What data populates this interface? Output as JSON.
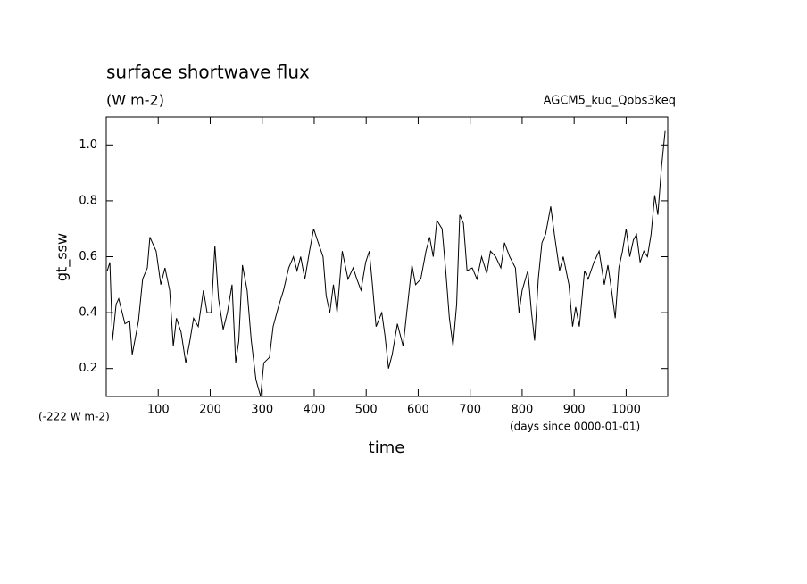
{
  "chart_data": {
    "type": "line",
    "title": "surface shortwave flux",
    "subtitle": "(W m-2)",
    "annotation": "AGCM5_kuo_Qobs3keq",
    "ylabel": "gt_ssw",
    "xlabel": "time",
    "offset_label": "(-222 W m-2)",
    "xunit_label": "(days since 0000-01-01)",
    "xlim": [
      0,
      1080
    ],
    "ylim": [
      0.1,
      1.1
    ],
    "xticks": [
      100,
      200,
      300,
      400,
      500,
      600,
      700,
      800,
      900,
      1000
    ],
    "yticks": [
      0.2,
      0.4,
      0.6,
      0.8,
      {
        "value": 1,
        "label": "1.0"
      }
    ],
    "x": [
      2,
      7,
      12,
      19,
      24,
      36,
      45,
      50,
      62,
      70,
      79,
      84,
      96,
      105,
      113,
      122,
      129,
      135,
      144,
      153,
      161,
      168,
      177,
      187,
      194,
      202,
      209,
      216,
      225,
      233,
      242,
      249,
      255,
      262,
      271,
      279,
      288,
      297,
      303,
      314,
      321,
      331,
      341,
      351,
      360,
      367,
      374,
      382,
      391,
      399,
      406,
      417,
      423,
      430,
      437,
      444,
      454,
      465,
      475,
      482,
      490,
      499,
      506,
      512,
      519,
      530,
      536,
      543,
      550,
      560,
      571,
      578,
      588,
      595,
      605,
      615,
      622,
      629,
      636,
      646,
      653,
      660,
      667,
      674,
      680,
      687,
      694,
      704,
      713,
      722,
      732,
      739,
      749,
      759,
      766,
      776,
      787,
      794,
      800,
      811,
      818,
      824,
      831,
      838,
      845,
      855,
      862,
      872,
      879,
      890,
      897,
      903,
      910,
      920,
      927,
      938,
      948,
      958,
      965,
      972,
      979,
      986,
      993,
      1000,
      1007,
      1014,
      1020,
      1027,
      1034,
      1041,
      1048,
      1055,
      1061,
      1068,
      1075
    ],
    "series": [
      {
        "name": "gt_ssw",
        "color": "#000000",
        "values": [
          0.55,
          0.58,
          0.3,
          0.43,
          0.45,
          0.36,
          0.37,
          0.25,
          0.37,
          0.52,
          0.56,
          0.67,
          0.62,
          0.5,
          0.56,
          0.48,
          0.28,
          0.38,
          0.33,
          0.22,
          0.3,
          0.38,
          0.35,
          0.48,
          0.4,
          0.4,
          0.64,
          0.45,
          0.34,
          0.4,
          0.5,
          0.22,
          0.3,
          0.57,
          0.48,
          0.3,
          0.16,
          0.1,
          0.22,
          0.24,
          0.35,
          0.42,
          0.48,
          0.56,
          0.6,
          0.55,
          0.6,
          0.52,
          0.62,
          0.7,
          0.66,
          0.6,
          0.46,
          0.4,
          0.5,
          0.4,
          0.62,
          0.52,
          0.56,
          0.52,
          0.48,
          0.58,
          0.62,
          0.5,
          0.35,
          0.4,
          0.32,
          0.2,
          0.25,
          0.36,
          0.28,
          0.4,
          0.57,
          0.5,
          0.52,
          0.62,
          0.67,
          0.6,
          0.73,
          0.7,
          0.55,
          0.38,
          0.28,
          0.43,
          0.75,
          0.72,
          0.55,
          0.56,
          0.52,
          0.6,
          0.54,
          0.62,
          0.6,
          0.56,
          0.65,
          0.6,
          0.56,
          0.4,
          0.48,
          0.55,
          0.4,
          0.3,
          0.52,
          0.65,
          0.68,
          0.78,
          0.68,
          0.55,
          0.6,
          0.5,
          0.35,
          0.42,
          0.35,
          0.55,
          0.52,
          0.58,
          0.62,
          0.5,
          0.57,
          0.48,
          0.38,
          0.56,
          0.62,
          0.7,
          0.6,
          0.66,
          0.68,
          0.58,
          0.62,
          0.6,
          0.68,
          0.82,
          0.75,
          0.92,
          1.05
        ]
      }
    ]
  }
}
